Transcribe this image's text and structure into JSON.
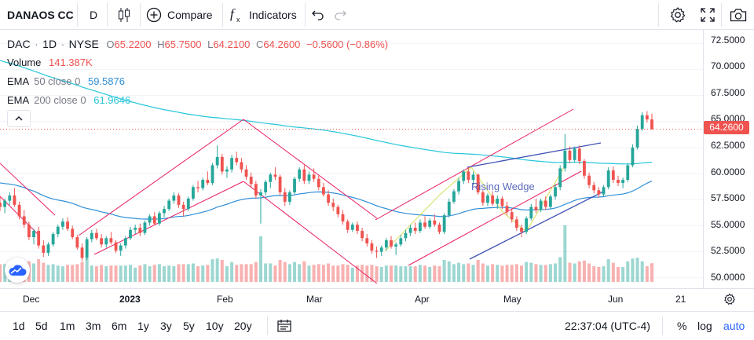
{
  "toolbar": {
    "symbol": "DANAOS CC",
    "interval": "D",
    "compare_label": "Compare",
    "indicators_label": "Indicators"
  },
  "legend": {
    "symbol": "DAC",
    "interval": "1D",
    "exchange": "NYSE",
    "open_label": "O",
    "open": "65.2200",
    "high_label": "H",
    "high": "65.7500",
    "low_label": "L",
    "low": "64.2100",
    "close_label": "C",
    "close": "64.2600",
    "change": "−0.5600 (−0.86%)",
    "volume_label": "Volume",
    "volume": "141.387K",
    "ema50_label": "EMA",
    "ema50_params": "50 close 0",
    "ema50_value": "59.5876",
    "ema200_label": "EMA",
    "ema200_params": "200 close 0",
    "ema200_value": "61.9646"
  },
  "annotation": {
    "rising_wedge": "Rising Wedge"
  },
  "price_axis": {
    "ticks": [
      "72.5000",
      "70.0000",
      "67.5000",
      "65.0000",
      "62.5000",
      "60.0000",
      "57.5000",
      "55.0000",
      "52.5000",
      "50.0000"
    ],
    "last_price": "64.2600"
  },
  "time_axis": {
    "labels": [
      "Dec",
      "2023",
      "Feb",
      "Mar",
      "Apr",
      "May",
      "Jun",
      "21"
    ]
  },
  "bottom": {
    "ranges": [
      "1d",
      "5d",
      "1m",
      "3m",
      "6m",
      "1y",
      "3y",
      "5y",
      "10y",
      "20y"
    ],
    "time": "22:37:04 (UTC-4)",
    "percent": "%",
    "log": "log",
    "auto": "auto"
  },
  "colors": {
    "up": "#26a69a",
    "down": "#ef5350",
    "ema50": "#2f8fd9",
    "ema200": "#26c6da",
    "channel": "#e91e63",
    "wedge": "#3f51b5",
    "accent": "#2962ff"
  },
  "chart_data": {
    "type": "candlestick",
    "series": [
      {
        "name": "DAC",
        "ohlc": [
          [
            57.2,
            57.8,
            56.4,
            56.8
          ],
          [
            56.8,
            57.6,
            56.2,
            57.4
          ],
          [
            57.4,
            58.2,
            57.0,
            57.9
          ],
          [
            57.9,
            58.6,
            56.8,
            57.0
          ],
          [
            57.0,
            57.3,
            55.6,
            55.9
          ],
          [
            55.9,
            56.5,
            54.8,
            55.1
          ],
          [
            55.1,
            55.4,
            53.6,
            53.9
          ],
          [
            53.9,
            54.7,
            53.2,
            54.5
          ],
          [
            54.5,
            54.9,
            52.8,
            53.1
          ],
          [
            53.1,
            53.6,
            52.0,
            52.4
          ],
          [
            52.4,
            53.4,
            52.1,
            53.2
          ],
          [
            53.2,
            54.4,
            53.0,
            54.2
          ],
          [
            54.2,
            55.1,
            53.9,
            54.9
          ],
          [
            54.9,
            55.7,
            54.6,
            55.4
          ],
          [
            55.4,
            55.8,
            54.5,
            54.7
          ],
          [
            54.7,
            55.0,
            53.7,
            53.9
          ],
          [
            53.9,
            54.1,
            52.7,
            52.9
          ],
          [
            52.9,
            53.3,
            51.6,
            51.9
          ],
          [
            51.9,
            53.9,
            51.7,
            53.7
          ],
          [
            53.7,
            54.6,
            53.4,
            54.3
          ],
          [
            54.3,
            54.7,
            53.6,
            53.8
          ],
          [
            53.8,
            54.2,
            52.9,
            53.2
          ],
          [
            53.2,
            54.0,
            52.9,
            53.8
          ],
          [
            53.8,
            54.4,
            53.2,
            53.4
          ],
          [
            53.4,
            53.6,
            52.4,
            52.6
          ],
          [
            52.6,
            53.3,
            52.1,
            53.1
          ],
          [
            53.1,
            54.0,
            52.8,
            53.8
          ],
          [
            53.8,
            54.9,
            53.6,
            54.6
          ],
          [
            54.6,
            55.1,
            54.2,
            54.8
          ],
          [
            54.8,
            55.2,
            54.0,
            54.3
          ],
          [
            54.3,
            55.5,
            54.1,
            55.3
          ],
          [
            55.3,
            56.1,
            55.0,
            55.9
          ],
          [
            55.9,
            56.3,
            55.0,
            55.2
          ],
          [
            55.2,
            56.4,
            55.0,
            56.2
          ],
          [
            56.2,
            56.9,
            55.8,
            56.6
          ],
          [
            56.6,
            57.6,
            56.4,
            57.4
          ],
          [
            57.4,
            58.2,
            57.1,
            57.9
          ],
          [
            57.9,
            58.1,
            56.7,
            57.0
          ],
          [
            57.0,
            57.3,
            55.9,
            56.6
          ],
          [
            56.6,
            57.8,
            56.4,
            57.6
          ],
          [
            57.6,
            58.9,
            57.4,
            58.7
          ],
          [
            58.7,
            59.3,
            58.2,
            58.6
          ],
          [
            58.6,
            59.6,
            58.4,
            59.4
          ],
          [
            59.4,
            60.2,
            58.9,
            59.1
          ],
          [
            59.1,
            61.0,
            58.9,
            60.8
          ],
          [
            60.8,
            62.7,
            60.5,
            61.6
          ],
          [
            61.6,
            61.9,
            59.9,
            60.2
          ],
          [
            60.2,
            60.7,
            59.6,
            60.4
          ],
          [
            60.4,
            61.8,
            60.1,
            61.5
          ],
          [
            61.5,
            62.1,
            60.8,
            61.1
          ],
          [
            61.1,
            61.5,
            60.1,
            60.4
          ],
          [
            60.4,
            60.8,
            59.4,
            59.7
          ],
          [
            59.7,
            60.1,
            58.7,
            59.0
          ],
          [
            59.0,
            59.3,
            57.6,
            57.9
          ],
          [
            57.9,
            58.5,
            55.2,
            58.2
          ],
          [
            58.2,
            59.4,
            57.9,
            59.2
          ],
          [
            59.2,
            60.1,
            58.6,
            59.9
          ],
          [
            59.9,
            60.6,
            59.4,
            59.7
          ],
          [
            59.7,
            59.9,
            57.9,
            58.2
          ],
          [
            58.2,
            58.6,
            56.9,
            57.3
          ],
          [
            57.3,
            58.4,
            57.0,
            58.2
          ],
          [
            58.2,
            59.7,
            58.0,
            59.5
          ],
          [
            59.5,
            60.6,
            59.2,
            60.4
          ],
          [
            60.4,
            60.8,
            59.0,
            59.3
          ],
          [
            59.3,
            60.2,
            59.0,
            59.9
          ],
          [
            59.9,
            60.5,
            59.2,
            59.5
          ],
          [
            59.5,
            59.8,
            58.4,
            58.7
          ],
          [
            58.7,
            59.1,
            57.8,
            58.0
          ],
          [
            58.0,
            58.4,
            56.9,
            57.2
          ],
          [
            57.2,
            57.6,
            56.4,
            56.8
          ],
          [
            56.8,
            57.0,
            55.8,
            56.1
          ],
          [
            56.1,
            56.5,
            55.1,
            55.4
          ],
          [
            55.4,
            55.6,
            54.3,
            54.6
          ],
          [
            54.6,
            55.3,
            54.4,
            55.1
          ],
          [
            55.1,
            55.4,
            54.2,
            54.5
          ],
          [
            54.5,
            54.8,
            53.5,
            53.8
          ],
          [
            53.8,
            54.2,
            53.0,
            53.3
          ],
          [
            53.3,
            53.6,
            52.3,
            52.6
          ],
          [
            52.6,
            53.0,
            51.9,
            52.5
          ],
          [
            52.5,
            53.1,
            52.1,
            52.9
          ],
          [
            52.9,
            53.8,
            52.6,
            53.6
          ],
          [
            53.6,
            54.0,
            52.8,
            53.0
          ],
          [
            53.0,
            53.4,
            52.2,
            53.2
          ],
          [
            53.2,
            54.1,
            53.0,
            53.8
          ],
          [
            53.8,
            54.6,
            53.5,
            54.3
          ],
          [
            54.3,
            55.1,
            54.0,
            54.8
          ],
          [
            54.8,
            55.3,
            54.2,
            54.5
          ],
          [
            54.5,
            55.6,
            54.3,
            55.3
          ],
          [
            55.3,
            55.9,
            54.7,
            54.9
          ],
          [
            54.9,
            55.7,
            54.7,
            55.5
          ],
          [
            55.5,
            56.1,
            54.9,
            55.1
          ],
          [
            55.1,
            55.3,
            54.2,
            54.4
          ],
          [
            54.4,
            56.2,
            54.2,
            56.0
          ],
          [
            56.0,
            57.6,
            55.8,
            57.3
          ],
          [
            57.3,
            58.5,
            57.1,
            58.3
          ],
          [
            58.3,
            59.6,
            58.0,
            59.3
          ],
          [
            59.3,
            60.4,
            59.0,
            60.2
          ],
          [
            60.2,
            60.6,
            59.1,
            59.4
          ],
          [
            59.4,
            60.2,
            58.9,
            59.9
          ],
          [
            59.9,
            60.0,
            58.0,
            58.2
          ],
          [
            58.2,
            58.4,
            56.9,
            57.2
          ],
          [
            57.2,
            58.1,
            56.9,
            57.9
          ],
          [
            57.9,
            58.3,
            56.9,
            57.1
          ],
          [
            57.1,
            57.9,
            56.6,
            57.6
          ],
          [
            57.6,
            57.8,
            56.6,
            56.9
          ],
          [
            56.9,
            57.3,
            56.0,
            56.3
          ],
          [
            56.3,
            56.6,
            55.3,
            55.6
          ],
          [
            55.6,
            55.9,
            54.5,
            54.8
          ],
          [
            54.8,
            55.1,
            53.9,
            54.4
          ],
          [
            54.4,
            55.9,
            54.2,
            55.7
          ],
          [
            55.7,
            57.1,
            55.5,
            56.8
          ],
          [
            56.8,
            57.6,
            56.2,
            56.5
          ],
          [
            56.5,
            57.6,
            56.3,
            57.4
          ],
          [
            57.4,
            57.8,
            56.5,
            56.8
          ],
          [
            56.8,
            58.0,
            56.6,
            57.8
          ],
          [
            57.8,
            59.0,
            57.5,
            58.7
          ],
          [
            58.7,
            60.8,
            58.4,
            60.5
          ],
          [
            60.5,
            63.8,
            60.2,
            62.2
          ],
          [
            62.2,
            62.6,
            61.0,
            61.3
          ],
          [
            61.3,
            62.6,
            61.1,
            62.4
          ],
          [
            62.4,
            62.7,
            60.9,
            61.2
          ],
          [
            61.2,
            61.4,
            59.5,
            59.8
          ],
          [
            59.8,
            60.1,
            58.6,
            58.9
          ],
          [
            58.9,
            59.2,
            58.1,
            58.4
          ],
          [
            58.4,
            58.7,
            57.7,
            58.0
          ],
          [
            58.0,
            58.9,
            57.8,
            58.7
          ],
          [
            58.7,
            60.6,
            58.5,
            60.3
          ],
          [
            60.3,
            60.7,
            59.1,
            59.4
          ],
          [
            59.4,
            59.8,
            58.8,
            59.1
          ],
          [
            59.1,
            59.6,
            58.6,
            59.4
          ],
          [
            59.4,
            61.0,
            59.2,
            60.8
          ],
          [
            60.8,
            62.8,
            60.6,
            62.5
          ],
          [
            62.5,
            64.6,
            62.3,
            64.3
          ],
          [
            64.3,
            65.9,
            64.1,
            65.6
          ],
          [
            65.6,
            66.0,
            64.9,
            65.2
          ],
          [
            65.2,
            65.75,
            64.21,
            64.26
          ]
        ]
      }
    ],
    "ylim": [
      49.0,
      73.8
    ],
    "x_labels": [
      "Dec",
      "2023",
      "Feb",
      "Mar",
      "Apr",
      "May",
      "Jun",
      "21"
    ]
  }
}
